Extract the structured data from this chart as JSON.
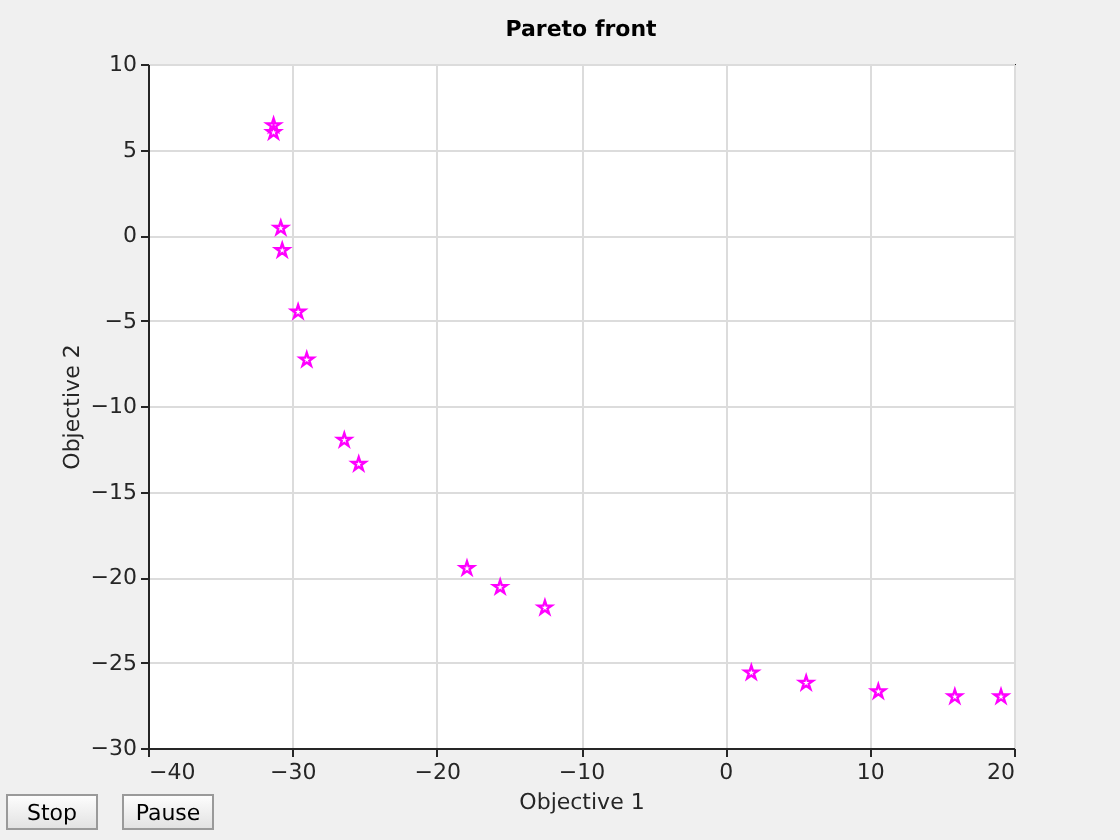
{
  "chart_data": {
    "type": "scatter",
    "title": "Pareto front",
    "xlabel": "Objective 1",
    "ylabel": "Objective 2",
    "x": [
      -31.3,
      -31.3,
      -30.8,
      -30.7,
      -29.6,
      -29.0,
      -26.4,
      -25.4,
      -17.9,
      -15.6,
      -12.5,
      1.8,
      5.6,
      10.6,
      15.9,
      19.1
    ],
    "series": [
      {
        "color": "#ff00ff",
        "values": [
          6.4,
          6.0,
          0.4,
          -0.9,
          -4.5,
          -7.3,
          -12.0,
          -13.4,
          -19.5,
          -20.6,
          -21.8,
          -25.6,
          -26.2,
          -26.7,
          -27.0,
          -27.0
        ]
      }
    ],
    "xlim": [
      -40,
      20
    ],
    "xticks": [
      -40,
      -30,
      -20,
      -10,
      0,
      10,
      20
    ],
    "ylim": [
      -30,
      10
    ],
    "yticks": [
      -30,
      -25,
      -20,
      -15,
      -10,
      -5,
      0,
      5,
      10
    ],
    "grid": true,
    "marker": "star",
    "annotations": [
      "Stop",
      "Pause"
    ]
  }
}
